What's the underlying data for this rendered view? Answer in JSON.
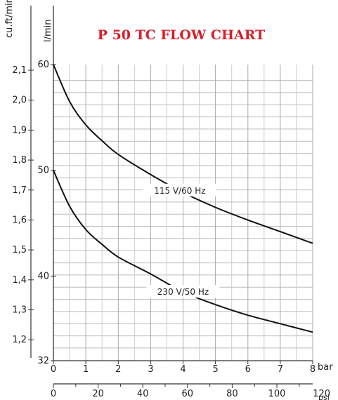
{
  "chart_data": {
    "type": "line",
    "title": "P 50 TC FLOW CHART",
    "x_axis": {
      "unit": "bar",
      "range": [
        0,
        8
      ],
      "ticks": [
        0,
        1,
        2,
        3,
        4,
        5,
        6,
        7,
        8
      ],
      "tick_labels": [
        "0",
        "1",
        "2",
        "3",
        "4",
        "5",
        "6",
        "7",
        "8"
      ]
    },
    "x_axis_secondary": {
      "unit": "psi",
      "ticks": [
        0,
        20,
        40,
        60,
        80,
        100,
        120
      ],
      "tick_labels": [
        "0",
        "20",
        "40",
        "60",
        "80",
        "100",
        "120"
      ]
    },
    "y_axis_left": {
      "unit": "cu.ft/min",
      "tick_labels": [
        "2,1",
        "2,0",
        "1,9",
        "1,8",
        "1,7",
        "1,6",
        "1,5",
        "1,4",
        "1,3",
        "1,2"
      ],
      "tick_values": [
        2.1,
        2.0,
        1.9,
        1.8,
        1.7,
        1.6,
        1.5,
        1.4,
        1.3,
        1.2
      ]
    },
    "y_axis_right": {
      "unit": "l/min",
      "range": [
        32,
        60
      ],
      "tick_labels": [
        "60",
        "50",
        "40",
        "32"
      ],
      "tick_values": [
        60,
        50,
        40,
        32
      ]
    },
    "series": [
      {
        "name": "115 V/60 Hz",
        "x": [
          0,
          0.5,
          1,
          1.5,
          2,
          3,
          4,
          5,
          6,
          7,
          8
        ],
        "y": [
          60,
          56.5,
          54.3,
          52.8,
          51.5,
          49.6,
          47.9,
          46.5,
          45.3,
          44.2,
          43.1
        ]
      },
      {
        "name": "230 V/50 Hz",
        "x": [
          0,
          0.5,
          1,
          1.5,
          2,
          3,
          4,
          5,
          6,
          7,
          8
        ],
        "y": [
          50,
          46.6,
          44.4,
          43.0,
          41.8,
          40.2,
          38.5,
          37.3,
          36.3,
          35.5,
          34.7
        ]
      }
    ],
    "grid": true
  }
}
